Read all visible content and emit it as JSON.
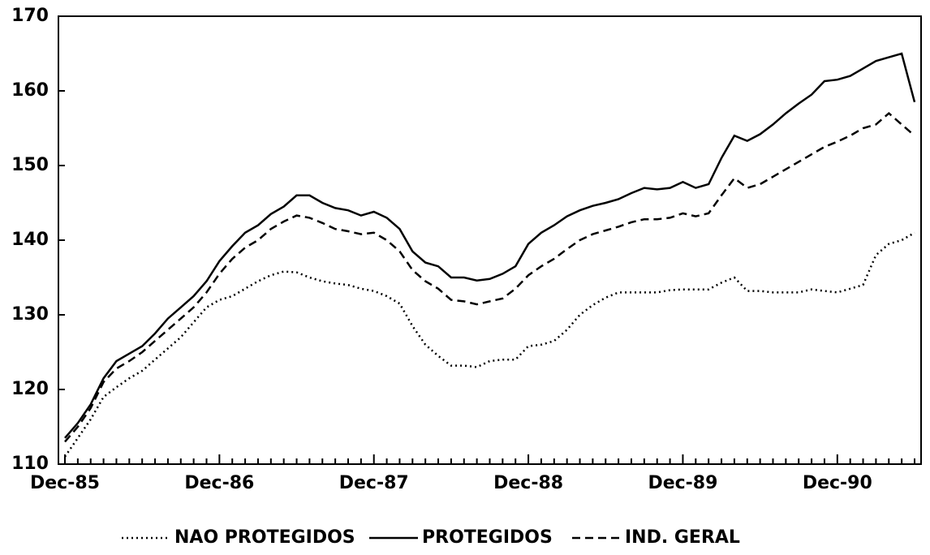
{
  "chart_data": {
    "type": "line",
    "categories": [
      "Dec-85",
      null,
      null,
      null,
      null,
      null,
      null,
      null,
      null,
      null,
      null,
      null,
      "Dec-86",
      null,
      null,
      null,
      null,
      null,
      null,
      null,
      null,
      null,
      null,
      null,
      "Dec-87",
      null,
      null,
      null,
      null,
      null,
      null,
      null,
      null,
      null,
      null,
      null,
      "Dec-88",
      null,
      null,
      null,
      null,
      null,
      null,
      null,
      null,
      null,
      null,
      null,
      "Dec-89",
      null,
      null,
      null,
      null,
      null,
      null,
      null,
      null,
      null,
      null,
      null,
      "Dec-90",
      null,
      null,
      null,
      null,
      null,
      null
    ],
    "series": [
      {
        "name": "NAO PROTEGIDOS",
        "color": "#000000",
        "dash": "dotted",
        "values": [
          111,
          113.5,
          116,
          119,
          120.3,
          121.5,
          122.5,
          124,
          125.5,
          127,
          129,
          131,
          132,
          132.5,
          133.5,
          134.5,
          135.3,
          135.8,
          135.7,
          135,
          134.5,
          134.2,
          134,
          133.5,
          133.2,
          132.5,
          131.5,
          128.5,
          126,
          124.5,
          123.2,
          123.2,
          123,
          123.8,
          124,
          124,
          125.8,
          126,
          126.5,
          128,
          130,
          131.3,
          132.3,
          133,
          133,
          133,
          133,
          133.3,
          133.4,
          133.4,
          133.4,
          134.3,
          135,
          133.2,
          133.2,
          133,
          133,
          133,
          133.4,
          133.2,
          133,
          133.5,
          134,
          138,
          139.5,
          140,
          141
        ]
      },
      {
        "name": "PROTEGIDOS",
        "color": "#000000",
        "dash": "solid",
        "values": [
          113.5,
          115.5,
          118,
          121.5,
          123.8,
          124.8,
          125.8,
          127.5,
          129.5,
          131,
          132.5,
          134.5,
          137.2,
          139.2,
          141,
          142,
          143.5,
          144.5,
          146,
          146,
          145,
          144.3,
          144,
          143.3,
          143.8,
          143,
          141.5,
          138.5,
          137,
          136.5,
          135,
          135,
          134.6,
          134.8,
          135.5,
          136.5,
          139.5,
          141,
          142,
          143.2,
          144,
          144.6,
          145,
          145.5,
          146.3,
          147,
          146.8,
          147,
          147.8,
          147,
          147.5,
          151,
          154,
          153.3,
          154.2,
          155.5,
          157,
          158.3,
          159.5,
          161.3,
          161.5,
          162,
          163,
          164,
          164.5,
          165,
          158.5
        ]
      },
      {
        "name": "IND. GERAL",
        "color": "#000000",
        "dash": "dashed",
        "values": [
          113,
          115,
          117.5,
          121,
          122.8,
          123.8,
          125,
          126.5,
          128,
          129.5,
          131,
          133,
          135.5,
          137.5,
          139,
          140,
          141.5,
          142.5,
          143.3,
          143,
          142.3,
          141.5,
          141.2,
          140.8,
          141,
          140,
          138.5,
          136,
          134.5,
          133.5,
          132,
          131.8,
          131.4,
          131.8,
          132.2,
          133.5,
          135.3,
          136.5,
          137.5,
          138.8,
          140,
          140.8,
          141.3,
          141.8,
          142.4,
          142.8,
          142.8,
          143,
          143.6,
          143.2,
          143.6,
          146,
          148.3,
          147,
          147.5,
          148.5,
          149.5,
          150.5,
          151.5,
          152.5,
          153.2,
          154,
          155,
          155.5,
          157,
          155.5,
          154
        ]
      }
    ],
    "ylim": [
      110,
      170
    ],
    "yticks": [
      110,
      120,
      130,
      140,
      150,
      160,
      170
    ],
    "grid": false,
    "legend": "bottom"
  }
}
